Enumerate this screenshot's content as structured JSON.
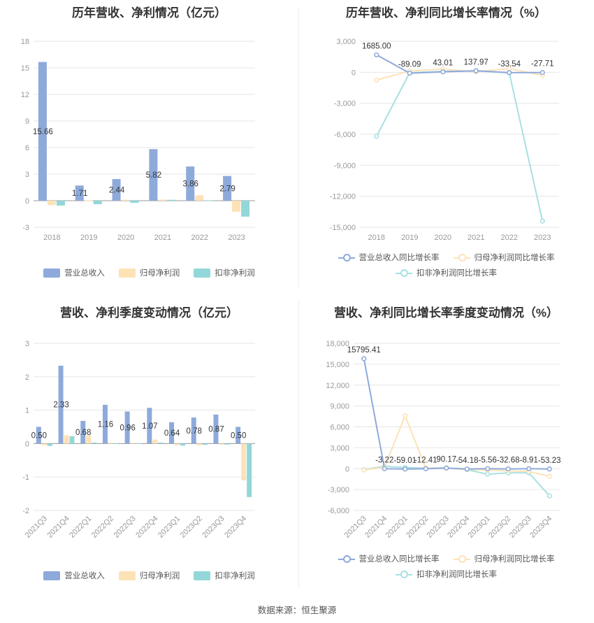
{
  "colors": {
    "revenue": "#8eaadb",
    "net_profit": "#fde2b6",
    "deducted_profit": "#93d7da",
    "revenue_line": "#8eaadb",
    "net_profit_line": "#fde2b6",
    "deducted_profit_line": "#a8e0e3",
    "grid": "#e6e6e6"
  },
  "source": "数据来源：恒生聚源",
  "chart_data": [
    {
      "type": "bar",
      "title": "历年营收、净利情况（亿元）",
      "categories": [
        "2018",
        "2019",
        "2020",
        "2021",
        "2022",
        "2023"
      ],
      "yticks": [
        "18",
        "15",
        "12",
        "9",
        "6",
        "3",
        "0",
        "-3"
      ],
      "ylim": [
        -3,
        18
      ],
      "series": [
        {
          "name": "营业总收入",
          "values": [
            15.66,
            1.71,
            2.44,
            5.82,
            3.86,
            2.79
          ],
          "labels": [
            "15.66",
            "1.71",
            "2.44",
            "5.82",
            "3.86",
            "2.79"
          ]
        },
        {
          "name": "归母净利润",
          "values": [
            -0.5,
            0.05,
            0.1,
            0.12,
            0.6,
            -1.25
          ]
        },
        {
          "name": "扣非净利润",
          "values": [
            -0.55,
            -0.4,
            -0.25,
            0.1,
            0.05,
            -1.8
          ]
        }
      ],
      "legend": "bottom"
    },
    {
      "type": "line",
      "title": "历年营收、净利同比增长率情况（%）",
      "categories": [
        "2018",
        "2019",
        "2020",
        "2021",
        "2022",
        "2023"
      ],
      "yticks": [
        "3,000",
        "0",
        "-3,000",
        "-6,000",
        "-9,000",
        "-12,000",
        "-15,000"
      ],
      "ylim": [
        -15000,
        3000
      ],
      "series": [
        {
          "name": "营业总收入同比增长率",
          "values": [
            1685.0,
            -89.09,
            43.01,
            137.97,
            -33.54,
            -27.71
          ],
          "labels": [
            "1685.00",
            "-89.09",
            "43.01",
            "137.97",
            "-33.54",
            "-27.71"
          ]
        },
        {
          "name": "归母净利润同比增长率",
          "values": [
            -750,
            120,
            300,
            50,
            350,
            -300
          ]
        },
        {
          "name": "扣非净利润同比增长率",
          "values": [
            -6200,
            -50,
            80,
            150,
            -60,
            -14400
          ]
        }
      ],
      "legend": "bottom"
    },
    {
      "type": "bar",
      "title": "营收、净利季度变动情况（亿元）",
      "categories": [
        "2021Q3",
        "2021Q4",
        "2022Q1",
        "2022Q2",
        "2022Q3",
        "2022Q4",
        "2023Q1",
        "2023Q2",
        "2023Q3",
        "2023Q4"
      ],
      "yticks": [
        "3",
        "2",
        "1",
        "0",
        "-1",
        "-2"
      ],
      "ylim": [
        -2,
        3
      ],
      "series": [
        {
          "name": "营业总收入",
          "values": [
            0.5,
            2.33,
            0.68,
            1.16,
            0.96,
            1.07,
            0.64,
            0.78,
            0.87,
            0.5
          ],
          "labels": [
            "0.50",
            "2.33",
            "0.68",
            "1.16",
            "0.96",
            "1.07",
            "0.64",
            "0.78",
            "0.87",
            "0.50"
          ]
        },
        {
          "name": "归母净利润",
          "values": [
            -0.05,
            0.25,
            0.25,
            0.02,
            0.02,
            0.12,
            -0.05,
            -0.05,
            -0.03,
            -1.1
          ]
        },
        {
          "name": "扣非净利润",
          "values": [
            -0.07,
            0.22,
            0.03,
            0.01,
            0.01,
            0.03,
            -0.06,
            -0.04,
            -0.03,
            -1.6
          ]
        }
      ],
      "legend": "bottom"
    },
    {
      "type": "line",
      "title": "营收、净利同比增长率季度变动情况（%）",
      "categories": [
        "2021Q3",
        "2021Q4",
        "2022Q1",
        "2022Q2",
        "2022Q3",
        "2022Q4",
        "2023Q1",
        "2023Q2",
        "2023Q3",
        "2023Q4"
      ],
      "yticks": [
        "18,000",
        "15,000",
        "12,000",
        "9,000",
        "6,000",
        "3,000",
        "0",
        "-3,000",
        "-6,000"
      ],
      "ylim": [
        -6000,
        18000
      ],
      "series": [
        {
          "name": "营业总收入同比增长率",
          "values": [
            15795.41,
            -3.22,
            -59.01,
            -12.41,
            90.17,
            -54.18,
            -5.56,
            -32.68,
            -8.91,
            -53.23
          ],
          "labels": [
            "15795.41",
            "-3.22",
            "-59.01",
            "-12.41",
            "90.17",
            "-54.18",
            "-5.56",
            "-32.68",
            "-8.91",
            "-53.23"
          ]
        },
        {
          "name": "归母净利润同比增长率",
          "values": [
            -200,
            200,
            7600,
            100,
            50,
            -100,
            -200,
            -300,
            -400,
            -1100
          ]
        },
        {
          "name": "扣非净利润同比增长率",
          "values": [
            -150,
            350,
            150,
            80,
            100,
            -150,
            -800,
            -600,
            -600,
            -3900
          ]
        }
      ],
      "legend": "bottom"
    }
  ]
}
